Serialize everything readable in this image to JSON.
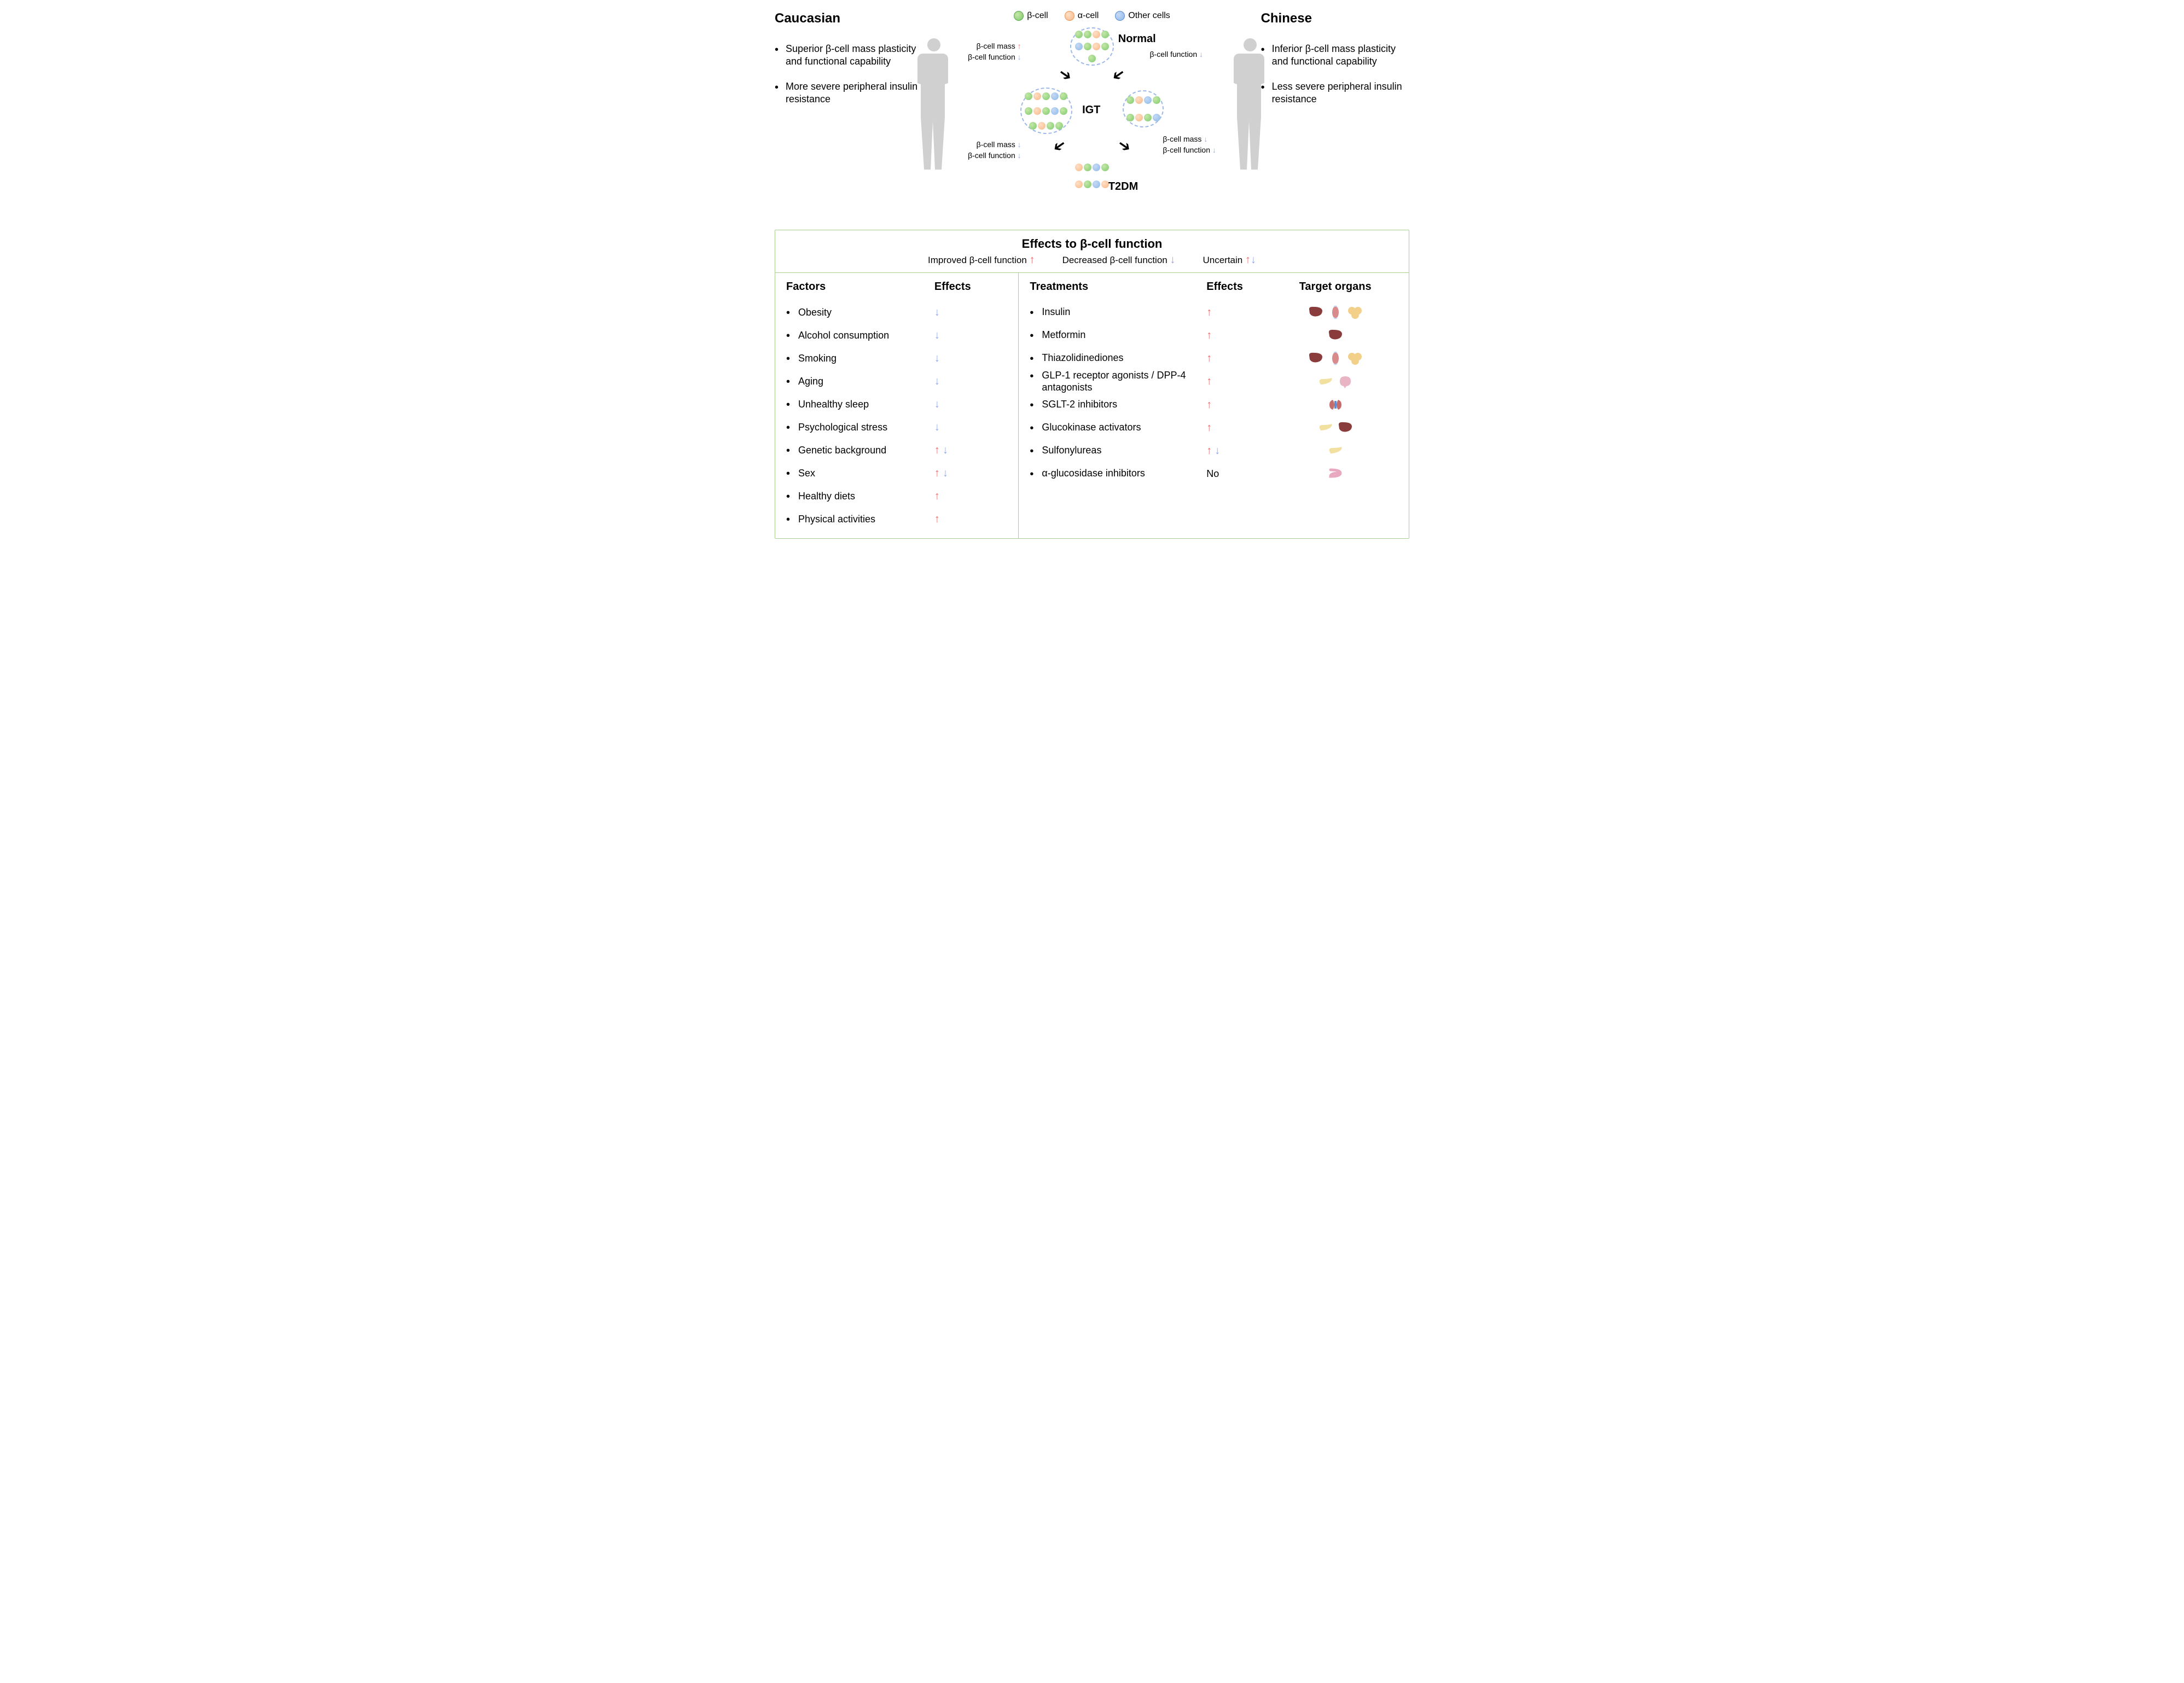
{
  "colors": {
    "arrow_up": "#e86d6d",
    "arrow_down": "#8fa8e8",
    "box_border": "#a8cf91",
    "beta_cell": "#7fc96e",
    "alpha_cell": "#f7b787",
    "other_cell": "#8fb8e8",
    "body_fill": "#d0d0d0",
    "liver": "#8a3b3b",
    "muscle": "#d98b8b",
    "fat": "#f2d089",
    "pancreas": "#f2e0a0",
    "brain": "#e8b5c5",
    "kidneys": "#c56d6d",
    "intestine": "#e8a8c0"
  },
  "typography": {
    "title_fontsize": 24,
    "body_fontsize": 18,
    "anno_fontsize": 14,
    "header_fontsize": 22
  },
  "cell_legend": {
    "beta": "β-cell",
    "alpha": "α-cell",
    "other": "Other cells"
  },
  "left": {
    "title": "Caucasian",
    "bullets": [
      "Superior β-cell mass plasticity and functional capability",
      "More severe peripheral insulin resistance"
    ]
  },
  "right": {
    "title": "Chinese",
    "bullets": [
      "Inferior β-cell mass plasticity and functional capability",
      "Less severe peripheral insulin resistance"
    ]
  },
  "stages": {
    "normal": "Normal",
    "igt": "IGT",
    "t2dm": "T2DM"
  },
  "annotations": {
    "top_left": [
      {
        "text": "β-cell mass",
        "dir": "up"
      },
      {
        "text": "β-cell function",
        "dir": "down"
      }
    ],
    "top_right": [
      {
        "text": "β-cell function",
        "dir": "down"
      }
    ],
    "bottom_left": [
      {
        "text": "β-cell mass",
        "dir": "down"
      },
      {
        "text": "β-cell function",
        "dir": "down"
      }
    ],
    "bottom_right": [
      {
        "text": "β-cell mass",
        "dir": "down"
      },
      {
        "text": "β-cell function",
        "dir": "down"
      }
    ]
  },
  "effects_header": {
    "title": "Effects to β-cell function",
    "improved": "Improved β-cell function",
    "decreased": "Decreased β-cell function",
    "uncertain": "Uncertain"
  },
  "factors": {
    "col1": "Factors",
    "col2": "Effects",
    "rows": [
      {
        "name": "Obesity",
        "effect": "down"
      },
      {
        "name": "Alcohol consumption",
        "effect": "down"
      },
      {
        "name": "Smoking",
        "effect": "down"
      },
      {
        "name": "Aging",
        "effect": "down"
      },
      {
        "name": "Unhealthy sleep",
        "effect": "down"
      },
      {
        "name": "Psychological stress",
        "effect": "down"
      },
      {
        "name": "Genetic background",
        "effect": "both"
      },
      {
        "name": "Sex",
        "effect": "both"
      },
      {
        "name": "Healthy diets",
        "effect": "up"
      },
      {
        "name": "Physical activities",
        "effect": "up"
      }
    ]
  },
  "treatments": {
    "col1": "Treatments",
    "col2": "Effects",
    "col3": "Target organs",
    "rows": [
      {
        "name": "Insulin",
        "effect": "up",
        "organs": [
          "liver",
          "muscle",
          "fat"
        ]
      },
      {
        "name": "Metformin",
        "effect": "up",
        "organs": [
          "liver"
        ]
      },
      {
        "name": "Thiazolidinediones",
        "effect": "up",
        "organs": [
          "liver",
          "muscle",
          "fat"
        ]
      },
      {
        "name": "GLP-1 receptor agonists / DPP-4 antagonists",
        "effect": "up",
        "organs": [
          "pancreas",
          "brain"
        ]
      },
      {
        "name": "SGLT-2 inhibitors",
        "effect": "up",
        "organs": [
          "kidneys"
        ]
      },
      {
        "name": "Glucokinase activators",
        "effect": "up",
        "organs": [
          "pancreas",
          "liver"
        ]
      },
      {
        "name": "Sulfonylureas",
        "effect": "both",
        "organs": [
          "pancreas"
        ]
      },
      {
        "name": "α-glucosidase inhibitors",
        "effect": "no",
        "organs": [
          "intestine"
        ]
      }
    ],
    "no_label": "No"
  }
}
